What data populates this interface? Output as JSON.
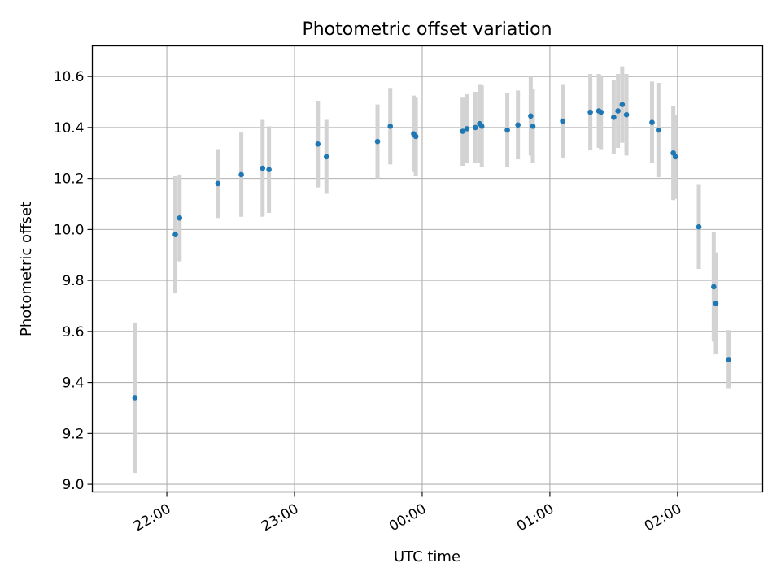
{
  "chart_data": {
    "type": "scatter",
    "title": "Photometric offset variation",
    "xlabel": "UTC time",
    "ylabel": "Photometric offset",
    "x_tick_labels": [
      "22:00",
      "23:00",
      "00:00",
      "01:00",
      "02:00"
    ],
    "y_ticks": [
      9.0,
      9.2,
      9.4,
      9.6,
      9.8,
      10.0,
      10.2,
      10.4,
      10.6
    ],
    "y_tick_labels": [
      "9.0",
      "9.2",
      "9.4",
      "9.6",
      "9.8",
      "10.0",
      "10.2",
      "10.4",
      "10.6"
    ],
    "ylim": [
      8.97,
      10.72
    ],
    "xlim": [
      "21:25",
      "02:40"
    ],
    "grid": true,
    "colors": {
      "point": "#1f77b4",
      "errorbar": "#d3d3d3",
      "grid": "#b0b0b0"
    },
    "points": [
      {
        "t": "21:45",
        "y": 9.34,
        "yerr": 0.295
      },
      {
        "t": "22:04",
        "y": 9.98,
        "yerr": 0.23
      },
      {
        "t": "22:06",
        "y": 10.045,
        "yerr": 0.17
      },
      {
        "t": "22:24",
        "y": 10.18,
        "yerr": 0.135
      },
      {
        "t": "22:35",
        "y": 10.215,
        "yerr": 0.165
      },
      {
        "t": "22:45",
        "y": 10.24,
        "yerr": 0.19
      },
      {
        "t": "22:48",
        "y": 10.235,
        "yerr": 0.17
      },
      {
        "t": "23:11",
        "y": 10.335,
        "yerr": 0.17
      },
      {
        "t": "23:15",
        "y": 10.285,
        "yerr": 0.145
      },
      {
        "t": "23:39",
        "y": 10.345,
        "yerr": 0.145
      },
      {
        "t": "23:45",
        "y": 10.405,
        "yerr": 0.15
      },
      {
        "t": "23:56",
        "y": 10.375,
        "yerr": 0.15
      },
      {
        "t": "23:57",
        "y": 10.365,
        "yerr": 0.155
      },
      {
        "t": "00:19",
        "y": 10.385,
        "yerr": 0.135
      },
      {
        "t": "00:21",
        "y": 10.395,
        "yerr": 0.135
      },
      {
        "t": "00:25",
        "y": 10.4,
        "yerr": 0.14
      },
      {
        "t": "00:27",
        "y": 10.415,
        "yerr": 0.155
      },
      {
        "t": "00:28",
        "y": 10.405,
        "yerr": 0.16
      },
      {
        "t": "00:40",
        "y": 10.39,
        "yerr": 0.145
      },
      {
        "t": "00:45",
        "y": 10.41,
        "yerr": 0.135
      },
      {
        "t": "00:51",
        "y": 10.445,
        "yerr": 0.155
      },
      {
        "t": "00:52",
        "y": 10.405,
        "yerr": 0.145
      },
      {
        "t": "01:06",
        "y": 10.425,
        "yerr": 0.145
      },
      {
        "t": "01:19",
        "y": 10.46,
        "yerr": 0.15
      },
      {
        "t": "01:23",
        "y": 10.465,
        "yerr": 0.145
      },
      {
        "t": "01:24",
        "y": 10.46,
        "yerr": 0.145
      },
      {
        "t": "01:30",
        "y": 10.44,
        "yerr": 0.145
      },
      {
        "t": "01:32",
        "y": 10.465,
        "yerr": 0.145
      },
      {
        "t": "01:34",
        "y": 10.49,
        "yerr": 0.15
      },
      {
        "t": "01:36",
        "y": 10.45,
        "yerr": 0.16
      },
      {
        "t": "01:48",
        "y": 10.42,
        "yerr": 0.16
      },
      {
        "t": "01:51",
        "y": 10.39,
        "yerr": 0.185
      },
      {
        "t": "01:58",
        "y": 10.3,
        "yerr": 0.185
      },
      {
        "t": "01:59",
        "y": 10.285,
        "yerr": 0.165
      },
      {
        "t": "02:10",
        "y": 10.01,
        "yerr": 0.165
      },
      {
        "t": "02:17",
        "y": 9.775,
        "yerr": 0.215
      },
      {
        "t": "02:18",
        "y": 9.71,
        "yerr": 0.2
      },
      {
        "t": "02:24",
        "y": 9.49,
        "yerr": 0.115
      }
    ]
  }
}
